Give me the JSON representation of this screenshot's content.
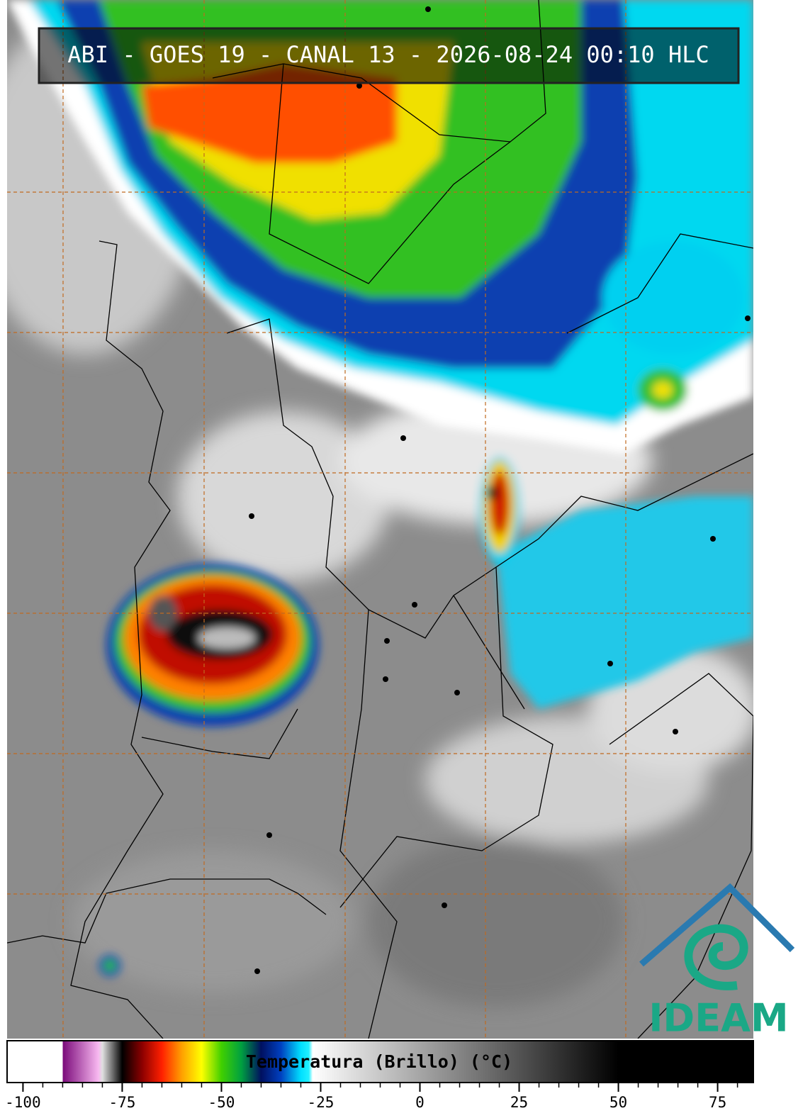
{
  "header": {
    "title": "ABI - GOES 19 - CANAL 13 - 2026-08-24 00:10 HLC"
  },
  "logo": {
    "text": "IDEAM"
  },
  "colorbar": {
    "label": "Temperatura (Brillo) (°C)",
    "range": [
      -104,
      84
    ],
    "ticks": [
      -100,
      -75,
      -50,
      -25,
      0,
      25,
      50,
      75
    ],
    "minor_ticks": [
      -100,
      -95,
      -90,
      -85,
      -80,
      -75,
      -70,
      -65,
      -60,
      -55,
      -50,
      -45,
      -40,
      -35,
      -30,
      -25,
      -20,
      -15,
      -10,
      -5,
      0,
      5,
      10,
      15,
      20,
      25,
      30,
      35,
      40,
      45,
      50,
      55,
      60,
      65,
      70,
      75,
      80
    ],
    "stops": [
      {
        "value": -104,
        "color": "#ffffff"
      },
      {
        "value": -90,
        "color": "#ffffff"
      },
      {
        "value": -90,
        "color": "#7a0a7a"
      },
      {
        "value": -81,
        "color": "#f8b8f0"
      },
      {
        "value": -80,
        "color": "#e0e0e0"
      },
      {
        "value": -76,
        "color": "#303030"
      },
      {
        "value": -75,
        "color": "#000000"
      },
      {
        "value": -70,
        "color": "#8b0000"
      },
      {
        "value": -65,
        "color": "#ff2000"
      },
      {
        "value": -60,
        "color": "#ffa000"
      },
      {
        "value": -55,
        "color": "#ffff00"
      },
      {
        "value": -50,
        "color": "#40d000"
      },
      {
        "value": -45,
        "color": "#00a040"
      },
      {
        "value": -40,
        "color": "#001060"
      },
      {
        "value": -35,
        "color": "#0040c0"
      },
      {
        "value": -30,
        "color": "#00e0ff"
      },
      {
        "value": -28,
        "color": "#20f0ff"
      },
      {
        "value": -27,
        "color": "#ffffff"
      },
      {
        "value": 50,
        "color": "#000000"
      },
      {
        "value": 84,
        "color": "#000000"
      }
    ]
  }
}
